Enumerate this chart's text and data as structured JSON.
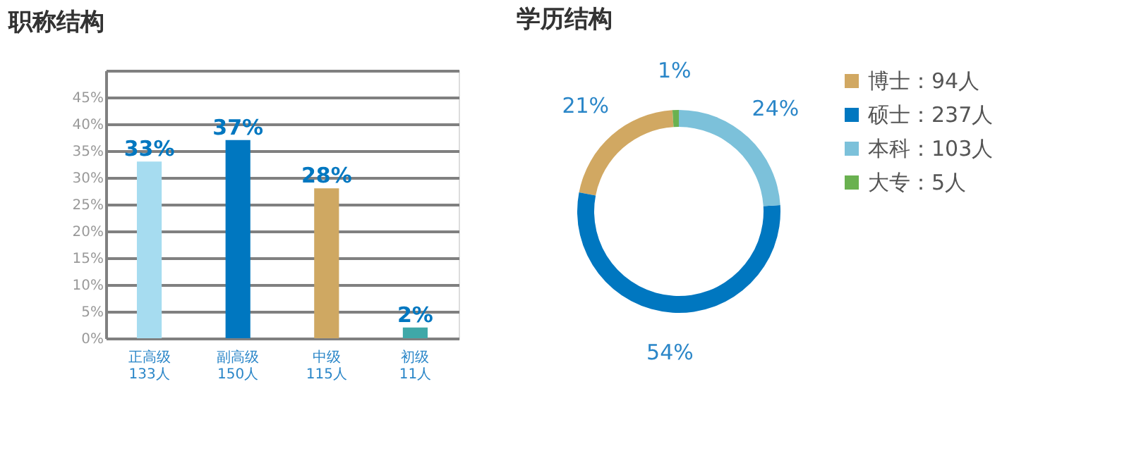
{
  "chart_data": [
    {
      "type": "bar",
      "title": "职称结构",
      "categories": [
        "正高级\n133人",
        "副高级\n150人",
        "中级\n115人",
        "初级\n11人"
      ],
      "values": [
        33,
        37,
        28,
        2
      ],
      "colors": [
        "#a6dcf0",
        "#0077c0",
        "#cfa862",
        "#3fa8a8"
      ],
      "value_labels": [
        "33%",
        "37%",
        "28%",
        "2%"
      ],
      "ylim": [
        0,
        50
      ],
      "yticks": [
        {
          "value": 0,
          "label": "0%"
        },
        {
          "value": 5,
          "label": "5%"
        },
        {
          "value": 10,
          "label": "10%"
        },
        {
          "value": 15,
          "label": "15%"
        },
        {
          "value": 20,
          "label": "20%"
        },
        {
          "value": 25,
          "label": "25%"
        },
        {
          "value": 30,
          "label": "30%"
        },
        {
          "value": 35,
          "label": "35%"
        },
        {
          "value": 40,
          "label": "40%"
        },
        {
          "value": 45,
          "label": "45%"
        },
        {
          "value": 50,
          "label": null
        }
      ],
      "grid": "y"
    },
    {
      "type": "donut",
      "title": "学历结构",
      "categories": [
        "博士：94人",
        "硕士：237人",
        "本科：103人",
        "大专：5人"
      ],
      "values": [
        21,
        54,
        24,
        1
      ],
      "colors": [
        "#d1a862",
        "#0077c0",
        "#7cc1da",
        "#6ab150"
      ],
      "value_labels": [
        "21%",
        "54%",
        "24%",
        "1%"
      ],
      "legend": "right"
    }
  ]
}
